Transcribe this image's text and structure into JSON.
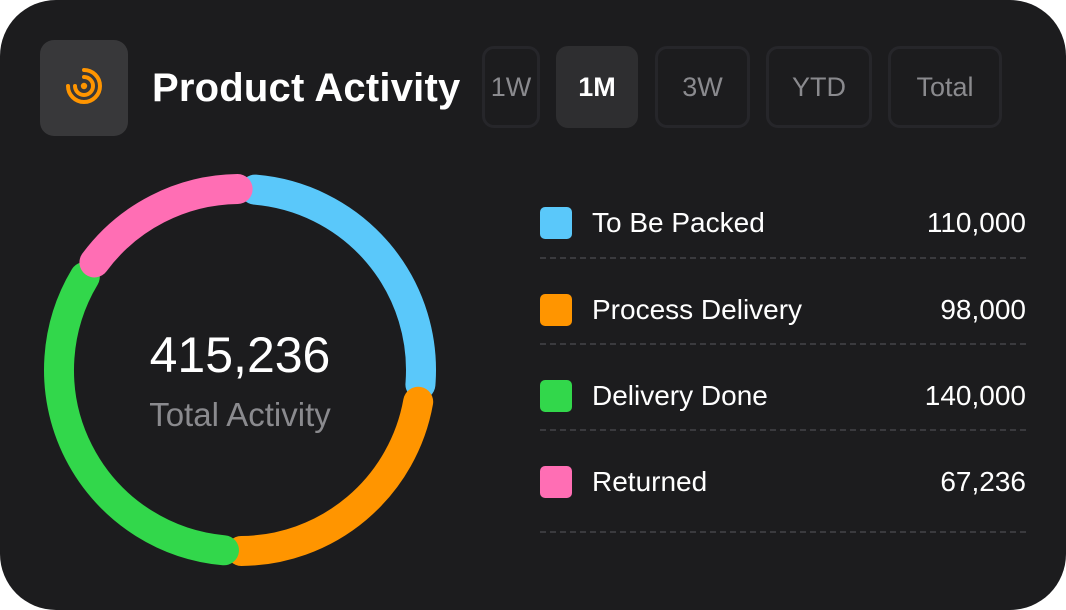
{
  "header": {
    "title": "Product Activity",
    "icon": "activity-rings-icon",
    "icon_color": "#ff9500"
  },
  "tabs": [
    {
      "label": "1W",
      "active": false
    },
    {
      "label": "1M",
      "active": true
    },
    {
      "label": "3W",
      "active": false
    },
    {
      "label": "YTD",
      "active": false
    },
    {
      "label": "Total",
      "active": false
    }
  ],
  "summary": {
    "total_value": "415,236",
    "total_label": "Total Activity"
  },
  "chart_data": {
    "type": "pie",
    "title": "Product Activity",
    "total": 415236,
    "categories": [
      "To Be Packed",
      "Process Delivery",
      "Delivery Done",
      "Returned"
    ],
    "values": [
      110000,
      98000,
      140000,
      67236
    ],
    "colors": [
      "#5ac8fa",
      "#ff9500",
      "#32d74b",
      "#ff6eb4"
    ],
    "style": "donut"
  },
  "legend": [
    {
      "label": "To Be Packed",
      "value": "110,000",
      "color": "#5ac8fa"
    },
    {
      "label": "Process Delivery",
      "value": "98,000",
      "color": "#ff9500"
    },
    {
      "label": "Delivery Done",
      "value": "140,000",
      "color": "#32d74b"
    },
    {
      "label": "Returned",
      "value": "67,236",
      "color": "#ff6eb4"
    }
  ]
}
